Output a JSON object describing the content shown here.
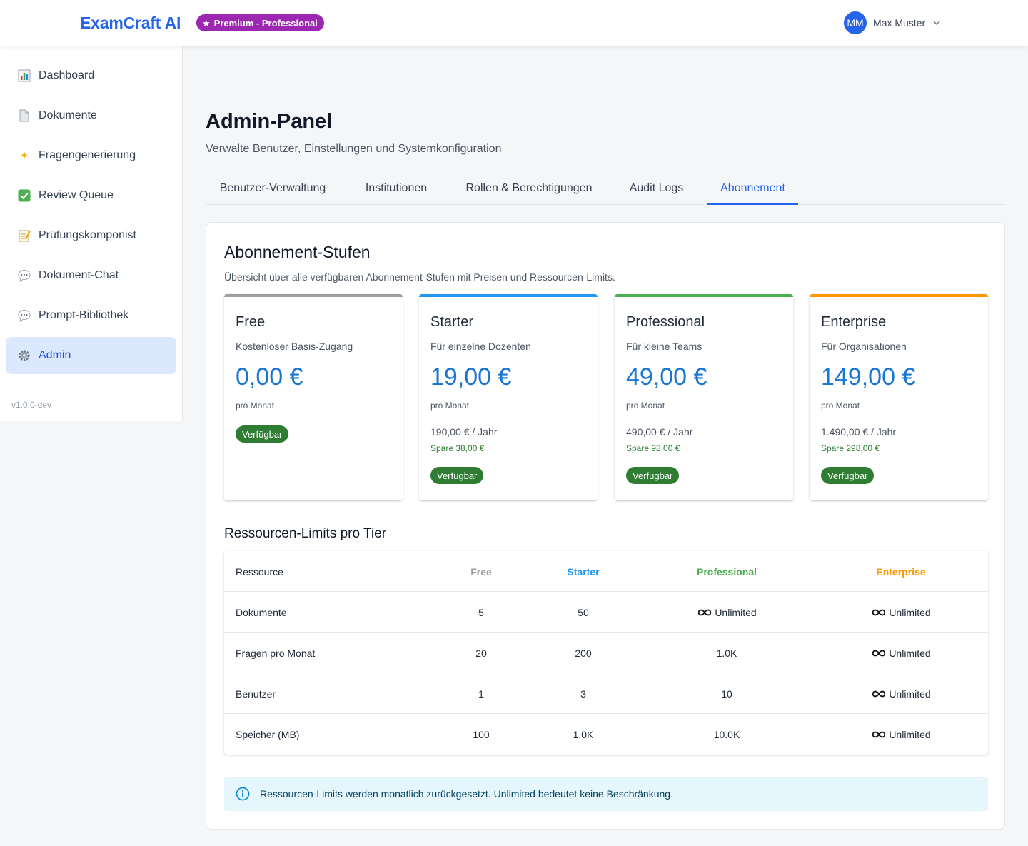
{
  "header": {
    "logo": "ExamCraft AI",
    "plan_badge": "Premium - Professional",
    "user_initials": "MM",
    "user_name": "Max Muster"
  },
  "sidebar": {
    "items": [
      {
        "label": "Dashboard",
        "icon": "bar-chart-icon"
      },
      {
        "label": "Dokumente",
        "icon": "document-icon"
      },
      {
        "label": "Fragengenerierung",
        "icon": "sparkles-icon"
      },
      {
        "label": "Review Queue",
        "icon": "check-icon"
      },
      {
        "label": "Prüfungskomponist",
        "icon": "memo-icon"
      },
      {
        "label": "Dokument-Chat",
        "icon": "speech-bubble-icon"
      },
      {
        "label": "Prompt-Bibliothek",
        "icon": "speech-bubble-icon"
      },
      {
        "label": "Admin",
        "icon": "gear-icon",
        "active": true
      }
    ],
    "version": "v1.0.0-dev"
  },
  "page": {
    "title": "Admin-Panel",
    "subtitle": "Verwalte Benutzer, Einstellungen und Systemkonfiguration",
    "tabs": [
      "Benutzer-Verwaltung",
      "Institutionen",
      "Rollen & Berechtigungen",
      "Audit Logs",
      "Abonnement"
    ],
    "active_tab": "Abonnement"
  },
  "subscription": {
    "title": "Abonnement-Stufen",
    "subtitle": "Übersicht über alle verfügbaren Abonnement-Stufen mit Preisen und Ressourcen-Limits.",
    "period_label": "pro Monat",
    "available_label": "Verfügbar",
    "tiers": [
      {
        "name": "Free",
        "description": "Kostenloser Basis-Zugang",
        "price": "0,00 €",
        "yearly": "",
        "savings": "",
        "color": "#9e9e9e"
      },
      {
        "name": "Starter",
        "description": "Für einzelne Dozenten",
        "price": "19,00 €",
        "yearly": "190,00 € / Jahr",
        "savings": "Spare 38,00 €",
        "color": "#2196f3"
      },
      {
        "name": "Professional",
        "description": "Für kleine Teams",
        "price": "49,00 €",
        "yearly": "490,00 € / Jahr",
        "savings": "Spare 98,00 €",
        "color": "#4caf50"
      },
      {
        "name": "Enterprise",
        "description": "Für Organisationen",
        "price": "149,00 €",
        "yearly": "1.490,00 € / Jahr",
        "savings": "Spare 298,00 €",
        "color": "#ff9800"
      }
    ]
  },
  "limits": {
    "title": "Ressourcen-Limits pro Tier",
    "columns": [
      "Ressource",
      "Free",
      "Starter",
      "Professional",
      "Enterprise"
    ],
    "rows": [
      {
        "resource": "Dokumente",
        "values": [
          "5",
          "50",
          "Unlimited",
          "Unlimited"
        ]
      },
      {
        "resource": "Fragen pro Monat",
        "values": [
          "20",
          "200",
          "1.0K",
          "Unlimited"
        ]
      },
      {
        "resource": "Benutzer",
        "values": [
          "1",
          "3",
          "10",
          "Unlimited"
        ]
      },
      {
        "resource": "Speicher (MB)",
        "values": [
          "100",
          "1.0K",
          "10.0K",
          "Unlimited"
        ]
      }
    ],
    "unlimited_icon": "infinity-icon"
  },
  "info": {
    "text": "Ressourcen-Limits werden monatlich zurückgesetzt. Unlimited bedeutet keine Beschränkung."
  }
}
